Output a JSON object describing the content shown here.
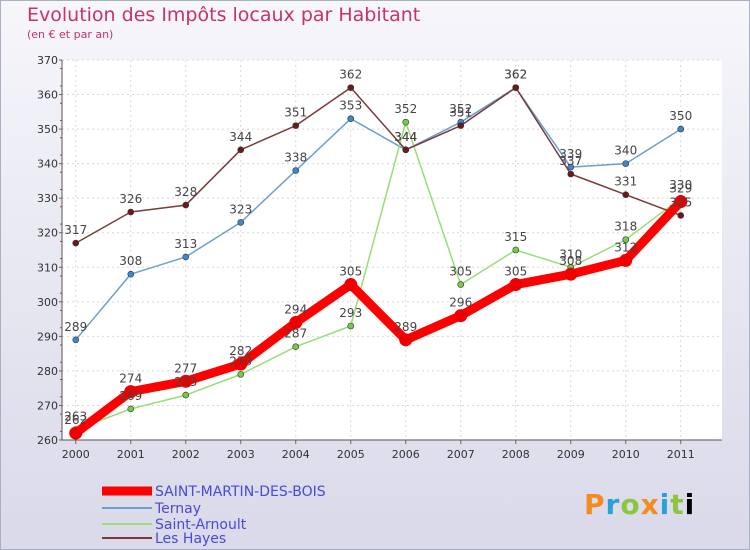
{
  "title": "Evolution des Impôts locaux par Habitant",
  "subtitle": "(en € et par an)",
  "logo": "Proxiti",
  "chart_data": {
    "type": "line",
    "title": "Evolution des Impôts locaux par Habitant",
    "ylabel": "(en € et par an)",
    "xlabel": "",
    "categories": [
      "2000",
      "2001",
      "2002",
      "2003",
      "2004",
      "2005",
      "2006",
      "2007",
      "2008",
      "2009",
      "2010",
      "2011"
    ],
    "yticks": [
      260,
      270,
      280,
      290,
      300,
      310,
      320,
      330,
      340,
      350,
      360,
      370
    ],
    "ylim": [
      260,
      370
    ],
    "grid": true,
    "legend_position": "bottom-left",
    "series": [
      {
        "name": "SAINT-MARTIN-DES-BOIS",
        "color": "#ff0000",
        "marker_color": "#ee0000",
        "emphasis": true,
        "values": [
          262,
          274,
          277,
          282,
          294,
          305,
          289,
          296,
          305,
          308,
          312,
          329
        ],
        "labels": [
          "262",
          "274",
          "277",
          "282",
          "294",
          "305",
          "289",
          "296",
          "305",
          "308",
          "312",
          "329"
        ]
      },
      {
        "name": "Ternay",
        "color": "#6a9fcf",
        "marker_color": "#3a88d0",
        "values": [
          289,
          308,
          313,
          323,
          338,
          353,
          344,
          352,
          362,
          339,
          340,
          350
        ],
        "labels": [
          "289",
          "308",
          "313",
          "323",
          "338",
          "353",
          "344",
          "352",
          "362",
          "339",
          "340",
          "350"
        ]
      },
      {
        "name": "Saint-Arnoult",
        "color": "#99dd77",
        "marker_color": "#77cc44",
        "values": [
          263,
          269,
          273,
          279,
          287,
          293,
          352,
          305,
          315,
          310,
          318,
          330
        ],
        "labels": [
          "263",
          "269",
          "273",
          "279",
          "287",
          "293",
          "352",
          "305",
          "315",
          "310",
          "318",
          "330"
        ]
      },
      {
        "name": "Les Hayes",
        "color": "#7a3a3a",
        "marker_color": "#6a1a1a",
        "values": [
          317,
          326,
          328,
          344,
          351,
          362,
          344,
          351,
          362,
          337,
          331,
          325
        ],
        "labels": [
          "317",
          "326",
          "328",
          "344",
          "351",
          "362",
          "344",
          "351",
          "362",
          "337",
          "331",
          "325"
        ]
      }
    ]
  }
}
